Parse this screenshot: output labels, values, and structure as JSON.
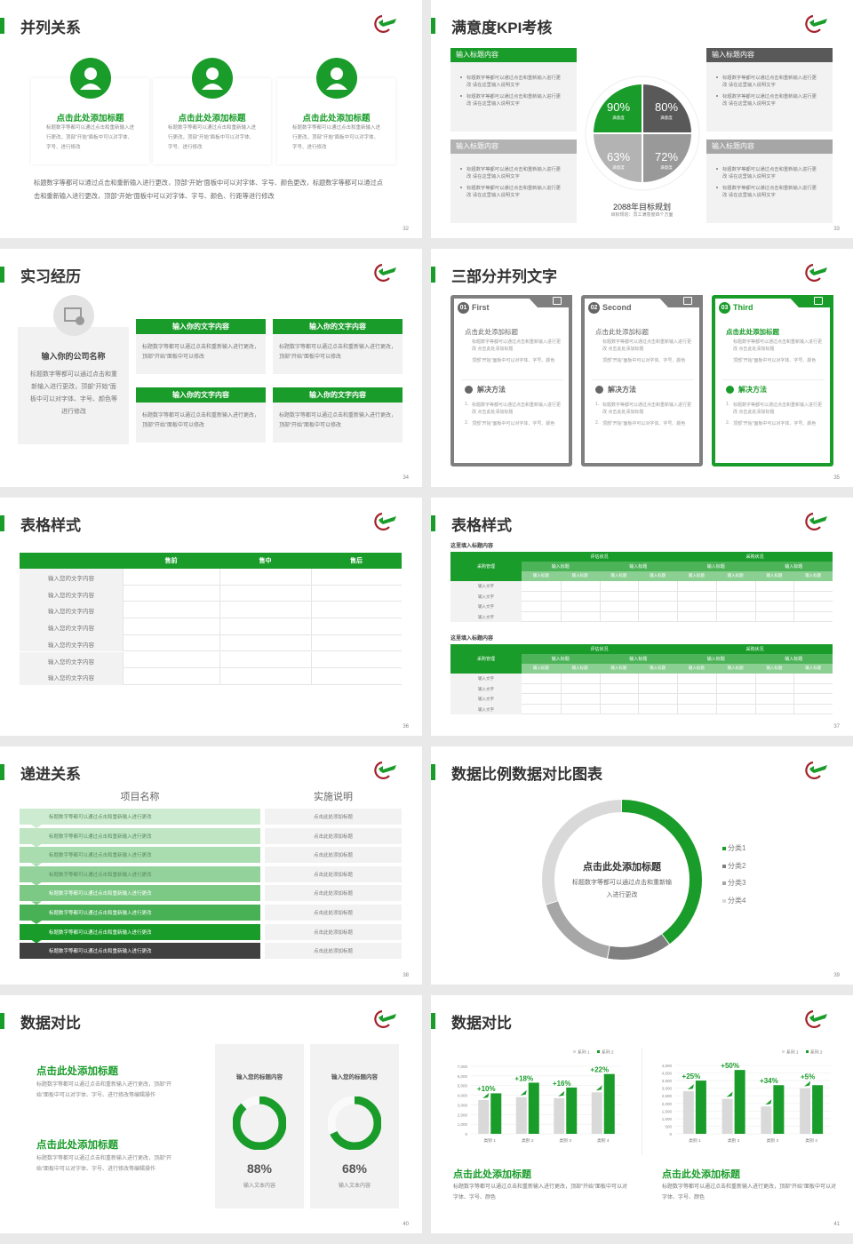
{
  "colors": {
    "green": "#1a9c2a",
    "dark": "#404040",
    "gray": "#7f7f7f",
    "light": "#f2f2f2"
  },
  "slides": {
    "s32": {
      "title": "并列关系",
      "page": "32",
      "cards": [
        {
          "icon": "headset-person-icon",
          "title": "点击此处添加标题",
          "desc": "标题数字等都可以通过点击和重新输入进行更改，顶部“开始”面板中可以对字体、字号、进行修改"
        },
        {
          "icon": "person-icon",
          "title": "点击此处添加标题",
          "desc": "标题数字等都可以通过点击和重新输入进行更改，顶部“开始”面板中可以对字体、字号、进行修改"
        },
        {
          "icon": "person-chat-icon",
          "title": "点击此处添加标题",
          "desc": "标题数字等都可以通过点击和重新输入进行更改，顶部“开始”面板中可以对字体、字号、进行修改"
        }
      ],
      "paragraph": "标题数字等都可以通过点击和重新输入进行更改，顶部“开始”面板中可以对字体、字号、颜色更改，标题数字等都可以通过点击和重新输入进行更改，顶部“开始”面板中可以对字体、字号、颜色、行距等进行修改"
    },
    "s33": {
      "title": "满意度KPI考核",
      "page": "33",
      "boxes": [
        {
          "header": "输入标题内容",
          "bullets": [
            "标题数字等都可以通过点击和重新输入进行更改 请在这里输入说明文字",
            "标题数字等都可以通过点击和重新输入进行更改 请在这里输入说明文字"
          ]
        },
        {
          "header": "输入标题内容",
          "bullets": [
            "标题数字等都可以通过点击和重新输入进行更改 请在这里输入说明文字",
            "标题数字等都可以通过点击和重新输入进行更改 请在这里输入说明文字"
          ]
        },
        {
          "header": "输入标题内容",
          "bullets": [
            "标题数字等都可以通过点击和重新输入进行更改 请在这里输入说明文字",
            "标题数字等都可以通过点击和重新输入进行更改 请在这里输入说明文字"
          ]
        },
        {
          "header": "输入标题内容",
          "bullets": [
            "标题数字等都可以通过点击和重新输入进行更改 请在这里输入说明文字",
            "标题数字等都可以通过点击和重新输入进行更改 请在这里输入说明文字"
          ]
        }
      ],
      "goal": "2088年目标规划",
      "goal_sub": "目标规划：员工满意度四个方面"
    },
    "s34": {
      "title": "实习经历",
      "page": "34",
      "company": "输入你的公司名称",
      "company_desc": "标题数字等都可以通过点击和重新输入进行更改，顶部“开始”面板中可以对字体、字号、颜色等进行修改",
      "boxes": [
        {
          "header": "输入你的文字内容",
          "text": "标题数字等都可以通过点击和重新输入进行更改，顶部“开始”面板中可以修改"
        },
        {
          "header": "输入你的文字内容",
          "text": "标题数字等都可以通过点击和重新输入进行更改，顶部“开始”面板中可以修改"
        },
        {
          "header": "输入你的文字内容",
          "text": "标题数字等都可以通过点击和重新输入进行更改，顶部“开始”面板中可以修改"
        },
        {
          "header": "输入你的文字内容",
          "text": "标题数字等都可以通过点击和重新输入进行更改，顶部“开始”面板中可以修改"
        }
      ]
    },
    "s35": {
      "title": "三部分并列文字",
      "page": "35",
      "cards": [
        {
          "num": "01",
          "label": "First",
          "icon": "clipboard-icon",
          "heading": "点击此处添加标题",
          "bullets": [
            "标题数字等都可以通过点击和重新输入进行更改 点击此处添加标题",
            "顶部“开始”面板中可以对字体、字号、颜色"
          ],
          "solution": "解决方法",
          "steps": [
            "标题数字等都可以通过点击和重新输入进行更改 点击此处添加标题",
            "顶部“开始”面板中可以对字体、字号、颜色"
          ]
        },
        {
          "num": "02",
          "label": "Second",
          "icon": "chat-icon",
          "heading": "点击此处添加标题",
          "bullets": [
            "标题数字等都可以通过点击和重新输入进行更改 点击此处添加标题",
            "顶部“开始”面板中可以对字体、字号、颜色"
          ],
          "solution": "解决方法",
          "steps": [
            "标题数字等都可以通过点击和重新输入进行更改 点击此处添加标题",
            "顶部“开始”面板中可以对字体、字号、颜色"
          ]
        },
        {
          "num": "03",
          "label": "Third",
          "icon": "folder-check-icon",
          "heading": "点击此处添加标题",
          "bullets": [
            "标题数字等都可以通过点击和重新输入进行更改 点击此处添加标题",
            "顶部“开始”面板中可以对字体、字号、颜色"
          ],
          "solution": "解决方法",
          "steps": [
            "标题数字等都可以通过点击和重新输入进行更改 点击此处添加标题",
            "顶部“开始”面板中可以对字体、字号、颜色"
          ]
        }
      ]
    },
    "s36": {
      "title": "表格样式",
      "page": "36",
      "headers": [
        "",
        "售前",
        "售中",
        "售后"
      ],
      "rows": [
        "输入您的文字内容",
        "输入您的文字内容",
        "输入您的文字内容",
        "输入您的文字内容",
        "输入您的文字内容",
        "输入您的文字内容",
        "输入您的文字内容"
      ]
    },
    "s37": {
      "title": "表格样式",
      "page": "37",
      "tables": [
        {
          "caption": "这里填入标题内容",
          "corner": "采购管理",
          "groups": [
            "评估状况",
            "采购状况"
          ],
          "subs": [
            "输入标题",
            "输入标题",
            "输入标题",
            "输入标题"
          ],
          "subsubs": [
            "输入标题",
            "输入标题",
            "输入标题",
            "输入标题",
            "输入标题",
            "输入标题",
            "输入标题",
            "输入标题"
          ],
          "rows": [
            "输入文字",
            "输入文字",
            "输入文字",
            "输入文字"
          ]
        },
        {
          "caption": "这里填入标题内容",
          "corner": "采购管理",
          "groups": [
            "评估状况",
            "采购状况"
          ],
          "subs": [
            "输入标题",
            "输入标题",
            "输入标题",
            "输入标题"
          ],
          "subsubs": [
            "输入标题",
            "输入标题",
            "输入标题",
            "输入标题",
            "输入标题",
            "输入标题",
            "输入标题",
            "输入标题"
          ],
          "rows": [
            "输入文字",
            "输入文字",
            "输入文字",
            "输入文字"
          ]
        }
      ]
    },
    "s38": {
      "title": "递进关系",
      "page": "38",
      "col1": "项目名称",
      "col2": "实施说明",
      "rows": [
        "标题数字等都可以通过点击和重新输入进行更改",
        "标题数字等都可以通过点击和重新输入进行更改",
        "标题数字等都可以通过点击和重新输入进行更改",
        "标题数字等都可以通过点击和重新输入进行更改",
        "标题数字等都可以通过点击和重新输入进行更改",
        "标题数字等都可以通过点击和重新输入进行更改",
        "标题数字等都可以通过点击和重新输入进行更改",
        "标题数字等都可以通过点击和重新输入进行更改"
      ],
      "notes": [
        "点击此处添加标题",
        "点击此处添加标题",
        "点击此处添加标题",
        "点击此处添加标题",
        "点击此处添加标题",
        "点击此处添加标题",
        "点击此处添加标题",
        "点击此处添加标题"
      ],
      "row_colors": [
        "#cdebd0",
        "#bfe5c3",
        "#a9dcaf",
        "#93d39b",
        "#7cc985",
        "#48b055",
        "#1a9c2a",
        "#404040"
      ]
    },
    "s39": {
      "title": "数据比例数据对比图表",
      "page": "39",
      "center_title": "点击此处添加标题",
      "center_text": "标题数字等都可以通过点击和重新输入进行更改"
    },
    "s40": {
      "title": "数据对比",
      "page": "40",
      "blocks": [
        {
          "title": "点击此处添加标题",
          "text": "标题数字等都可以通过点击和重新输入进行更改，顶部“开始”面板中可以对字体、字号、进行修改等编辑操作"
        },
        {
          "title": "点击此处添加标题",
          "text": "标题数字等都可以通过点击和重新输入进行更改，顶部“开始”面板中可以对字体、字号、进行修改等编辑操作"
        }
      ]
    },
    "s41": {
      "title": "数据对比",
      "page": "41",
      "captions": [
        {
          "title": "点击此处添加标题",
          "text": "标题数字等都可以通过点击和重新输入进行更改，顶部“开始”面板中可以对字体、字号、颜色"
        },
        {
          "title": "点击此处添加标题",
          "text": "标题数字等都可以通过点击和重新输入进行更改，顶部“开始”面板中可以对字体、字号、颜色"
        }
      ]
    }
  },
  "chart_data": [
    {
      "type": "pie",
      "slide": "33",
      "categories": [
        "满意度",
        "满意度",
        "满意度",
        "满意度"
      ],
      "values": [
        90,
        80,
        63,
        72
      ],
      "labels": [
        "90%",
        "80%",
        "63%",
        "72%"
      ],
      "colors": [
        "#1a9c2a",
        "#595959",
        "#b3b3b3",
        "#999999"
      ]
    },
    {
      "type": "pie",
      "slide": "39",
      "categories": [
        "分类1",
        "分类2",
        "分类3",
        "分类4"
      ],
      "values": [
        40,
        13,
        17,
        30
      ],
      "colors": [
        "#1a9c2a",
        "#7f7f7f",
        "#a6a6a6",
        "#d9d9d9"
      ],
      "legend": "right"
    },
    {
      "type": "pie",
      "slide": "40",
      "title": "输入您的标题内容",
      "values": [
        88
      ],
      "label": "88%",
      "caption": "输入文本内容"
    },
    {
      "type": "pie",
      "slide": "40",
      "title": "输入您的标题内容",
      "values": [
        68
      ],
      "label": "68%",
      "caption": "输入文本内容"
    },
    {
      "type": "bar",
      "slide": "41",
      "categories": [
        "类别 1",
        "类别 2",
        "类别 3",
        "类别 4"
      ],
      "series": [
        {
          "name": "系列 1",
          "values": [
            3500,
            3800,
            3700,
            4300
          ],
          "color": "#d9d9d9"
        },
        {
          "name": "系列 2",
          "values": [
            4200,
            5300,
            4800,
            6200
          ],
          "color": "#1a9c2a"
        }
      ],
      "annotations": [
        "+10%",
        "+18%",
        "+16%",
        "+22%"
      ],
      "ylim": [
        0,
        7000
      ],
      "yticks": [
        "0",
        "1,000",
        "2,000",
        "3,000",
        "4,000",
        "5,000",
        "6,000",
        "7,000"
      ],
      "grid": true,
      "legend": "top-right"
    },
    {
      "type": "bar",
      "slide": "41",
      "categories": [
        "类别 1",
        "类别 2",
        "类别 3",
        "类别 4"
      ],
      "series": [
        {
          "name": "系列 1",
          "values": [
            2800,
            2300,
            1800,
            3000
          ],
          "color": "#d9d9d9"
        },
        {
          "name": "系列 2",
          "values": [
            3500,
            4200,
            3200,
            3200
          ],
          "color": "#1a9c2a"
        }
      ],
      "annotations": [
        "+25%",
        "+50%",
        "+34%",
        "+5%"
      ],
      "ylim": [
        0,
        4500
      ],
      "yticks": [
        "0",
        "500",
        "1,000",
        "1,500",
        "2,000",
        "2,500",
        "3,000",
        "3,500",
        "4,000",
        "4,500"
      ],
      "grid": true,
      "legend": "top-right"
    }
  ]
}
